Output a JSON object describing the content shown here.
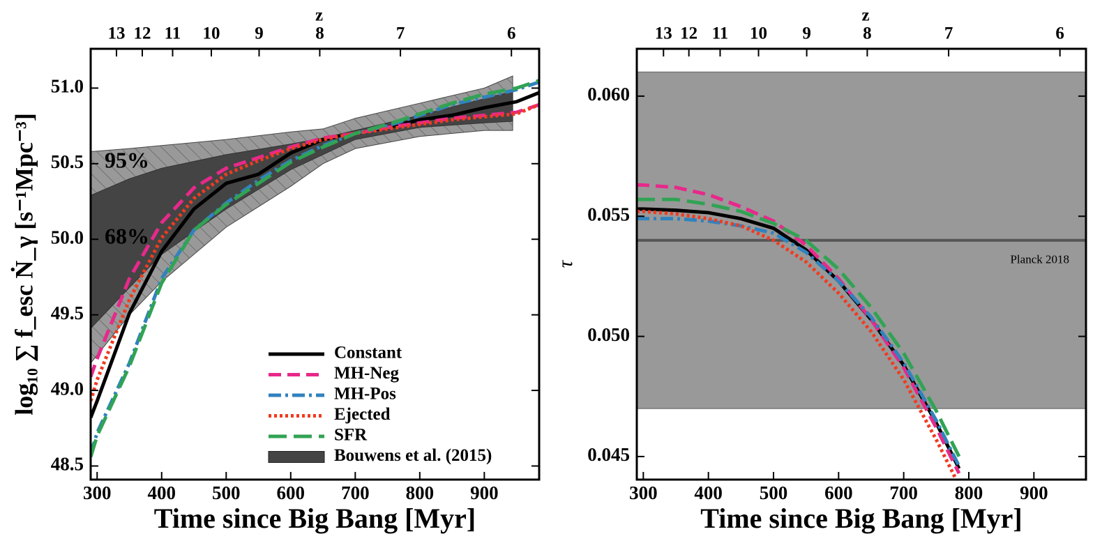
{
  "chart_data": [
    {
      "type": "line",
      "xlabel": "Time since Big Bang [Myr]",
      "ylabel": "log₁₀ ∑ f_esc Ṅ_γ [s⁻¹Mpc⁻³]",
      "xlim": [
        290,
        985
      ],
      "ylim": [
        48.41,
        51.26
      ],
      "xticks": [
        300,
        400,
        500,
        600,
        700,
        800,
        900
      ],
      "yticks": [
        48.5,
        {
          "value": 49.0,
          "label": "49.0"
        },
        49.5,
        {
          "value": 50.0,
          "label": "50.0"
        },
        50.5,
        {
          "value": 51.0,
          "label": "51.0"
        }
      ],
      "top_axis": {
        "label": "z",
        "ticks": [
          {
            "value": 330,
            "label": "13"
          },
          {
            "value": 370,
            "label": "12"
          },
          {
            "value": 417,
            "label": "11"
          },
          {
            "value": 477,
            "label": "10"
          },
          {
            "value": 551,
            "label": "9"
          },
          {
            "value": 645,
            "label": "8"
          },
          {
            "value": 770,
            "label": "7"
          },
          {
            "value": 942,
            "label": "6"
          }
        ]
      },
      "x": [
        290,
        300,
        350,
        400,
        450,
        500,
        550,
        600,
        650,
        700,
        750,
        800,
        850,
        900,
        950,
        985
      ],
      "series": [
        {
          "name": "Constant",
          "color": "#000000",
          "style": "solid",
          "values": [
            48.82,
            48.93,
            49.51,
            49.92,
            50.2,
            50.37,
            50.43,
            50.57,
            50.66,
            50.7,
            50.74,
            50.79,
            50.82,
            50.87,
            50.91,
            50.97
          ]
        },
        {
          "name": "MH-Neg",
          "color": "#e7298a",
          "style": "dashed",
          "values": [
            49.09,
            49.21,
            49.74,
            50.11,
            50.34,
            50.47,
            50.54,
            50.61,
            50.67,
            50.7,
            50.74,
            50.77,
            50.8,
            50.82,
            50.84,
            50.89
          ]
        },
        {
          "name": "MH-Pos",
          "color": "#3182bd",
          "style": "dashdot",
          "values": [
            48.58,
            48.72,
            49.18,
            49.74,
            50.06,
            50.24,
            50.39,
            50.52,
            50.62,
            50.7,
            50.75,
            50.82,
            50.89,
            50.94,
            50.99,
            51.04
          ]
        },
        {
          "name": "Ejected",
          "color": "#f03b20",
          "style": "dotted",
          "values": [
            48.93,
            49.07,
            49.6,
            50.01,
            50.27,
            50.43,
            50.52,
            50.6,
            50.66,
            50.7,
            50.73,
            50.76,
            50.79,
            50.81,
            50.83,
            50.89
          ]
        },
        {
          "name": "SFR",
          "color": "#31a354",
          "style": "longdash",
          "values": [
            48.56,
            48.7,
            49.16,
            49.71,
            50.06,
            50.23,
            50.37,
            50.51,
            50.61,
            50.7,
            50.76,
            50.83,
            50.9,
            50.96,
            51.0,
            51.05
          ]
        }
      ],
      "bands": {
        "name": "Bouwens et al. (2015)",
        "color": "#444444",
        "outer_color": "#999999",
        "x": [
          290,
          350,
          400,
          500,
          600,
          650,
          700,
          800,
          900,
          944
        ],
        "upper95": [
          50.58,
          50.6,
          50.62,
          50.66,
          50.71,
          50.73,
          50.8,
          50.9,
          51.0,
          51.08
        ],
        "upper68": [
          50.29,
          50.4,
          50.47,
          50.56,
          50.63,
          50.67,
          50.72,
          50.82,
          50.93,
          50.98
        ],
        "lower68": [
          49.41,
          49.68,
          49.9,
          50.2,
          50.46,
          50.56,
          50.66,
          50.74,
          50.77,
          50.78
        ],
        "lower95": [
          49.18,
          49.5,
          49.72,
          50.08,
          50.35,
          50.5,
          50.6,
          50.68,
          50.72,
          50.72
        ]
      },
      "annotations": [
        "95%",
        "68%"
      ],
      "legend": "lower right"
    },
    {
      "type": "line",
      "xlabel": "Time since Big Bang [Myr]",
      "ylabel": "τ",
      "xlim": [
        290,
        980
      ],
      "ylim": [
        0.04404,
        0.06197
      ],
      "xticks": [
        300,
        400,
        500,
        600,
        700,
        800,
        900
      ],
      "yticks": [
        0.045,
        {
          "value": 0.05,
          "label": "0.050"
        },
        0.055,
        {
          "value": 0.06,
          "label": "0.060"
        }
      ],
      "top_axis": {
        "label": "z",
        "ticks": [
          {
            "value": 331,
            "label": "13"
          },
          {
            "value": 370,
            "label": "12"
          },
          {
            "value": 418,
            "label": "11"
          },
          {
            "value": 477,
            "label": "10"
          },
          {
            "value": 551,
            "label": "9"
          },
          {
            "value": 644,
            "label": "8"
          },
          {
            "value": 769,
            "label": "7"
          },
          {
            "value": 940,
            "label": "6"
          }
        ]
      },
      "x": [
        290,
        300,
        350,
        400,
        450,
        500,
        550,
        600,
        650,
        700,
        750,
        785
      ],
      "series": [
        {
          "name": "Constant",
          "color": "#000000",
          "style": "solid",
          "values": [
            0.0553,
            0.0553,
            0.05525,
            0.05515,
            0.0549,
            0.0545,
            0.0536,
            0.0523,
            0.0507,
            0.0488,
            0.0464,
            0.0445
          ]
        },
        {
          "name": "MH-Neg",
          "color": "#e7298a",
          "style": "dashed",
          "values": [
            0.0563,
            0.0563,
            0.0562,
            0.0559,
            0.0554,
            0.0548,
            0.0538,
            0.0524,
            0.0507,
            0.0487,
            0.0462,
            0.0443
          ]
        },
        {
          "name": "MH-Pos",
          "color": "#3182bd",
          "style": "dashdot",
          "values": [
            0.0549,
            0.0549,
            0.0549,
            0.0548,
            0.0546,
            0.0543,
            0.0535,
            0.0523,
            0.0508,
            0.0489,
            0.0465,
            0.0446
          ]
        },
        {
          "name": "Ejected",
          "color": "#f03b20",
          "style": "dotted",
          "values": [
            0.0552,
            0.0552,
            0.0551,
            0.0549,
            0.0546,
            0.054,
            0.0531,
            0.0518,
            0.0502,
            0.0482,
            0.0457,
            0.0438
          ]
        },
        {
          "name": "SFR",
          "color": "#31a354",
          "style": "longdash",
          "values": [
            0.0557,
            0.0557,
            0.0557,
            0.0555,
            0.0552,
            0.0547,
            0.054,
            0.0528,
            0.0512,
            0.0493,
            0.0469,
            0.045
          ]
        }
      ],
      "reference": {
        "label": "Planck 2018",
        "lower": 0.047,
        "upper": 0.061,
        "value": 0.054,
        "color": "#999999",
        "line_color": "#555555"
      }
    }
  ]
}
